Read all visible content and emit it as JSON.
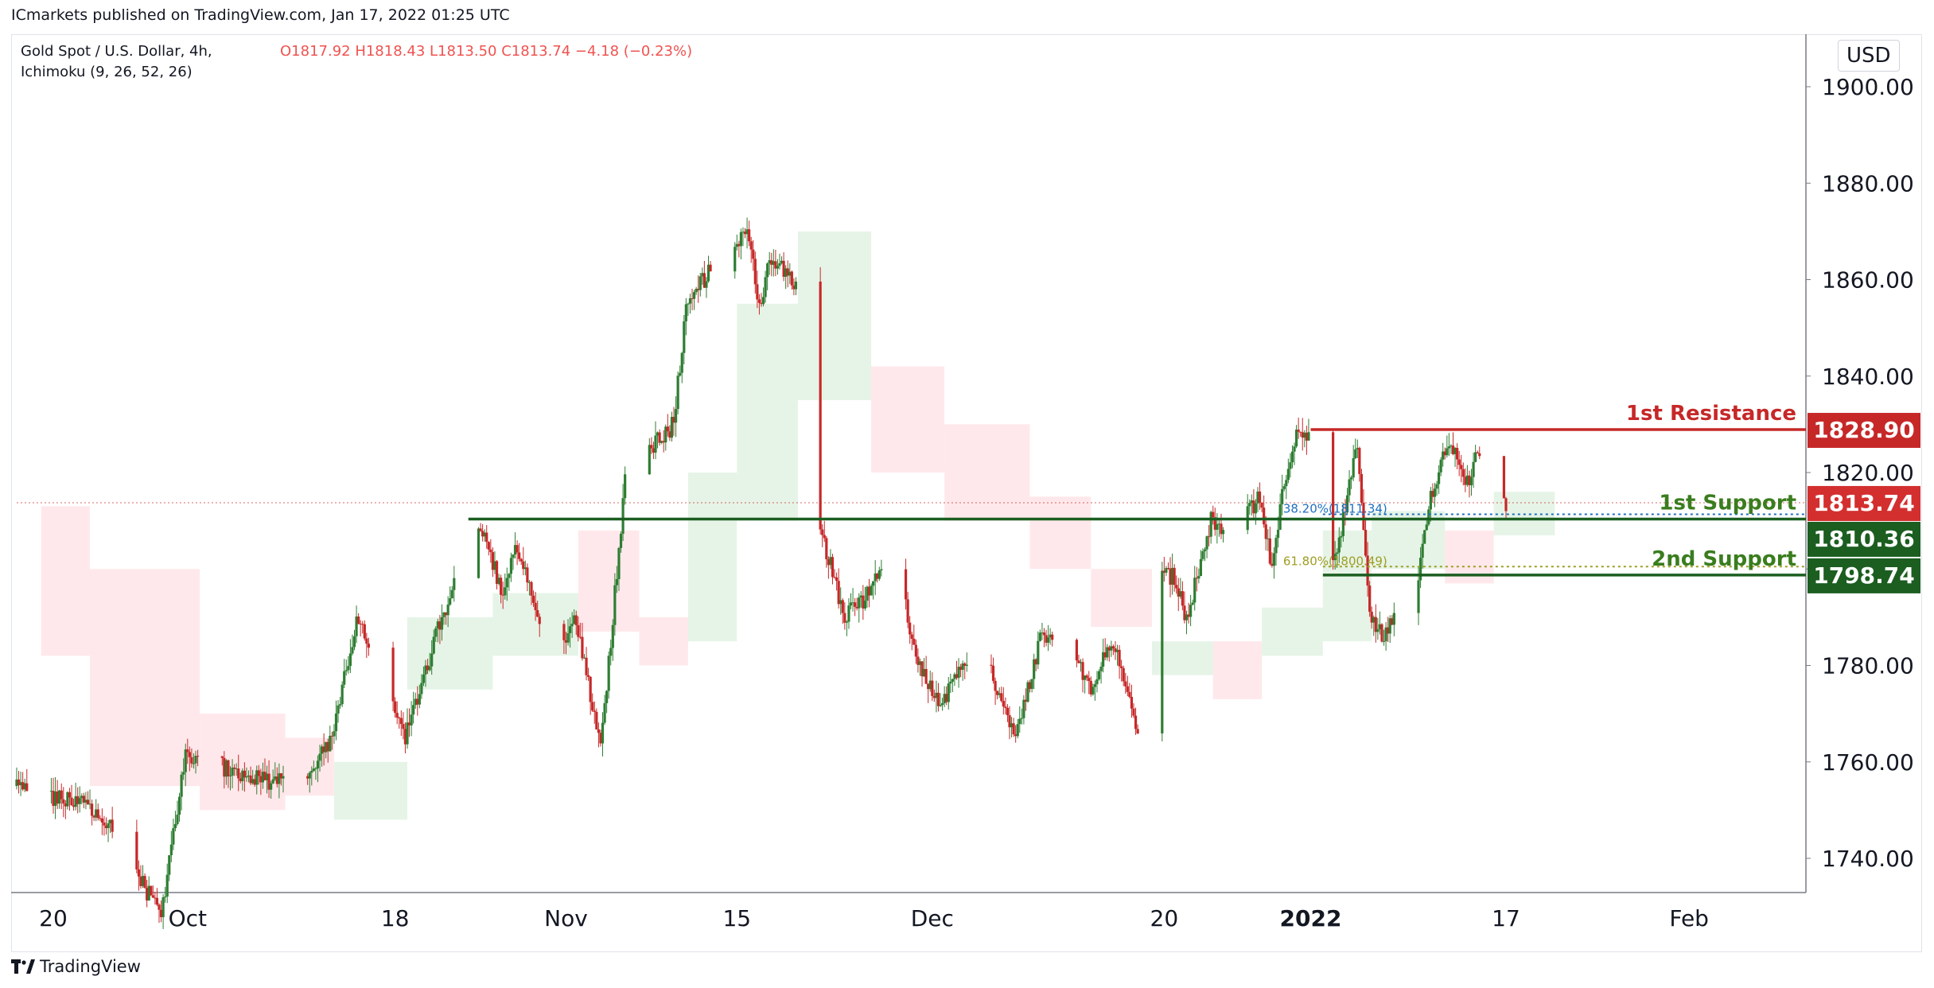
{
  "header": {
    "published_by": "ICmarkets published on TradingView.com, Jan 17, 2022 01:25 UTC"
  },
  "legend": {
    "symbol": "Gold Spot / U.S. Dollar, 4h,",
    "ohlc": "O1817.92  H1818.43  L1813.50  C1813.74  −4.18 (−0.23%)",
    "indicator": "Ichimoku (9, 26, 52, 26)"
  },
  "axis": {
    "currency": "USD"
  },
  "footer": {
    "brand": "TradingView"
  },
  "colors": {
    "bull": "#2e7d32",
    "bear": "#c62828",
    "resistance": "#c62828",
    "support": "#1b5e20",
    "support_label": "#3a7d1e",
    "cloud_green": "#c8e6c9",
    "cloud_red": "#ffcdd2",
    "fib1": "#1e6fbf",
    "fib2": "#9e9d24"
  },
  "chart_data": {
    "type": "candlestick",
    "symbol": "Gold Spot / U.S. Dollar",
    "interval": "4h",
    "ylim": [
      1731,
      1898
    ],
    "y_ticks": [
      "1740.00",
      "1760.00",
      "1780.00",
      "1800.00",
      "1820.00",
      "1840.00",
      "1860.00",
      "1880.00",
      "1900.00"
    ],
    "x_ticks": [
      {
        "label": "20",
        "date": "2021-09-20",
        "bold": false
      },
      {
        "label": "Oct",
        "date": "2021-10-01",
        "bold": false
      },
      {
        "label": "18",
        "date": "2021-10-18",
        "bold": false
      },
      {
        "label": "Nov",
        "date": "2021-11-01",
        "bold": false
      },
      {
        "label": "15",
        "date": "2021-11-15",
        "bold": false
      },
      {
        "label": "Dec",
        "date": "2021-12-01",
        "bold": false
      },
      {
        "label": "20",
        "date": "2021-12-20",
        "bold": false
      },
      {
        "label": "2022",
        "date": "2022-01-01",
        "bold": true
      },
      {
        "label": "17",
        "date": "2022-01-17",
        "bold": false
      },
      {
        "label": "Feb",
        "date": "2022-02-01",
        "bold": false
      }
    ],
    "trend": [
      {
        "date": "2021-09-17",
        "price": 1755
      },
      {
        "date": "2021-09-24",
        "price": 1750
      },
      {
        "date": "2021-09-29",
        "price": 1728
      },
      {
        "date": "2021-10-01",
        "price": 1762
      },
      {
        "date": "2021-10-06",
        "price": 1757
      },
      {
        "date": "2021-10-10",
        "price": 1755
      },
      {
        "date": "2021-10-13",
        "price": 1764
      },
      {
        "date": "2021-10-15",
        "price": 1790
      },
      {
        "date": "2021-10-19",
        "price": 1765
      },
      {
        "date": "2021-10-22",
        "price": 1790
      },
      {
        "date": "2021-10-25",
        "price": 1810
      },
      {
        "date": "2021-10-27",
        "price": 1795
      },
      {
        "date": "2021-10-28",
        "price": 1805
      },
      {
        "date": "2021-10-31",
        "price": 1782
      },
      {
        "date": "2021-11-02",
        "price": 1790
      },
      {
        "date": "2021-11-04",
        "price": 1762
      },
      {
        "date": "2021-11-05",
        "price": 1790
      },
      {
        "date": "2021-11-06",
        "price": 1818
      },
      {
        "date": "2021-11-08",
        "price": 1825
      },
      {
        "date": "2021-11-10",
        "price": 1830
      },
      {
        "date": "2021-11-11",
        "price": 1855
      },
      {
        "date": "2021-11-13",
        "price": 1862
      },
      {
        "date": "2021-11-15",
        "price": 1866
      },
      {
        "date": "2021-11-16",
        "price": 1870
      },
      {
        "date": "2021-11-17",
        "price": 1855
      },
      {
        "date": "2021-11-18",
        "price": 1865
      },
      {
        "date": "2021-11-20",
        "price": 1858
      },
      {
        "date": "2021-11-21",
        "price": 1845
      },
      {
        "date": "2021-11-22",
        "price": 1808
      },
      {
        "date": "2021-11-24",
        "price": 1790
      },
      {
        "date": "2021-11-26",
        "price": 1795
      },
      {
        "date": "2021-11-28",
        "price": 1805
      },
      {
        "date": "2021-11-30",
        "price": 1780
      },
      {
        "date": "2021-12-02",
        "price": 1772
      },
      {
        "date": "2021-12-04",
        "price": 1782
      },
      {
        "date": "2021-12-06",
        "price": 1778
      },
      {
        "date": "2021-12-08",
        "price": 1765
      },
      {
        "date": "2021-12-10",
        "price": 1785
      },
      {
        "date": "2021-12-12",
        "price": 1788
      },
      {
        "date": "2021-12-14",
        "price": 1775
      },
      {
        "date": "2021-12-16",
        "price": 1785
      },
      {
        "date": "2021-12-18",
        "price": 1765
      },
      {
        "date": "2021-12-19",
        "price": 1790
      },
      {
        "date": "2021-12-20",
        "price": 1800
      },
      {
        "date": "2021-12-21",
        "price": 1798
      },
      {
        "date": "2021-12-22",
        "price": 1790
      },
      {
        "date": "2021-12-24",
        "price": 1810
      },
      {
        "date": "2021-12-26",
        "price": 1808
      },
      {
        "date": "2021-12-28",
        "price": 1815
      },
      {
        "date": "2021-12-29",
        "price": 1800
      },
      {
        "date": "2021-12-30",
        "price": 1818
      },
      {
        "date": "2021-12-31",
        "price": 1828
      },
      {
        "date": "2022-01-02",
        "price": 1825
      },
      {
        "date": "2022-01-03",
        "price": 1800
      },
      {
        "date": "2022-01-04",
        "price": 1812
      },
      {
        "date": "2022-01-05",
        "price": 1826
      },
      {
        "date": "2022-01-06",
        "price": 1790
      },
      {
        "date": "2022-01-07",
        "price": 1786
      },
      {
        "date": "2022-01-09",
        "price": 1792
      },
      {
        "date": "2022-01-10",
        "price": 1798
      },
      {
        "date": "2022-01-11",
        "price": 1815
      },
      {
        "date": "2022-01-12",
        "price": 1824
      },
      {
        "date": "2022-01-13",
        "price": 1826
      },
      {
        "date": "2022-01-14",
        "price": 1818
      },
      {
        "date": "2022-01-15",
        "price": 1825
      },
      {
        "date": "2022-01-16",
        "price": 1817
      },
      {
        "date": "2022-01-17",
        "price": 1813.74
      }
    ],
    "levels": [
      {
        "name": "1st Resistance",
        "value": 1828.9,
        "label": "1828.90",
        "kind": "resistance",
        "start": "2022-01-01"
      },
      {
        "name": "1st Support",
        "value": 1810.36,
        "label": "1810.36",
        "kind": "support",
        "start": "2021-10-24"
      },
      {
        "name": "2nd Support",
        "value": 1798.74,
        "label": "1798.74",
        "kind": "support",
        "start": "2022-01-02"
      }
    ],
    "last_price": {
      "value": 1813.74,
      "label": "1813.74",
      "start": "2021-09-17"
    },
    "fib_levels": [
      {
        "label": "38.20%(1811.34)",
        "value": 1811.34,
        "start": "2022-01-02"
      },
      {
        "label": "61.80%(1800.49)",
        "value": 1800.49,
        "start": "2022-01-02"
      }
    ],
    "ichimoku": {
      "params": [
        9,
        26,
        52,
        26
      ],
      "cloud_segments": [
        {
          "start": "2021-09-19",
          "end": "2021-09-23",
          "top": 1813,
          "bottom": 1782,
          "color": "red"
        },
        {
          "start": "2021-09-23",
          "end": "2021-10-02",
          "top": 1800,
          "bottom": 1755,
          "color": "red"
        },
        {
          "start": "2021-10-02",
          "end": "2021-10-09",
          "top": 1770,
          "bottom": 1750,
          "color": "red"
        },
        {
          "start": "2021-10-09",
          "end": "2021-10-13",
          "top": 1765,
          "bottom": 1753,
          "color": "red"
        },
        {
          "start": "2021-10-13",
          "end": "2021-10-19",
          "top": 1760,
          "bottom": 1748,
          "color": "green"
        },
        {
          "start": "2021-10-19",
          "end": "2021-10-26",
          "top": 1790,
          "bottom": 1775,
          "color": "green"
        },
        {
          "start": "2021-10-26",
          "end": "2021-11-02",
          "top": 1795,
          "bottom": 1782,
          "color": "green"
        },
        {
          "start": "2021-11-02",
          "end": "2021-11-07",
          "top": 1808,
          "bottom": 1787,
          "color": "red"
        },
        {
          "start": "2021-11-07",
          "end": "2021-11-11",
          "top": 1790,
          "bottom": 1780,
          "color": "red"
        },
        {
          "start": "2021-11-11",
          "end": "2021-11-15",
          "top": 1820,
          "bottom": 1785,
          "color": "green"
        },
        {
          "start": "2021-11-15",
          "end": "2021-11-20",
          "top": 1855,
          "bottom": 1810,
          "color": "green"
        },
        {
          "start": "2021-11-20",
          "end": "2021-11-26",
          "top": 1870,
          "bottom": 1835,
          "color": "green"
        },
        {
          "start": "2021-11-26",
          "end": "2021-12-02",
          "top": 1842,
          "bottom": 1820,
          "color": "red"
        },
        {
          "start": "2021-12-02",
          "end": "2021-12-09",
          "top": 1830,
          "bottom": 1810,
          "color": "red"
        },
        {
          "start": "2021-12-09",
          "end": "2021-12-14",
          "top": 1815,
          "bottom": 1800,
          "color": "red"
        },
        {
          "start": "2021-12-14",
          "end": "2021-12-19",
          "top": 1800,
          "bottom": 1788,
          "color": "red"
        },
        {
          "start": "2021-12-19",
          "end": "2021-12-24",
          "top": 1785,
          "bottom": 1778,
          "color": "green"
        },
        {
          "start": "2021-12-24",
          "end": "2021-12-28",
          "top": 1785,
          "bottom": 1773,
          "color": "red"
        },
        {
          "start": "2021-12-28",
          "end": "2022-01-02",
          "top": 1792,
          "bottom": 1782,
          "color": "green"
        },
        {
          "start": "2022-01-02",
          "end": "2022-01-06",
          "top": 1808,
          "bottom": 1785,
          "color": "green"
        },
        {
          "start": "2022-01-06",
          "end": "2022-01-12",
          "top": 1812,
          "bottom": 1800,
          "color": "green"
        },
        {
          "start": "2022-01-12",
          "end": "2022-01-16",
          "top": 1808,
          "bottom": 1797,
          "color": "red"
        },
        {
          "start": "2022-01-16",
          "end": "2022-01-21",
          "top": 1816,
          "bottom": 1807,
          "color": "green"
        }
      ]
    },
    "grid": false,
    "legend_position": "top-left"
  }
}
